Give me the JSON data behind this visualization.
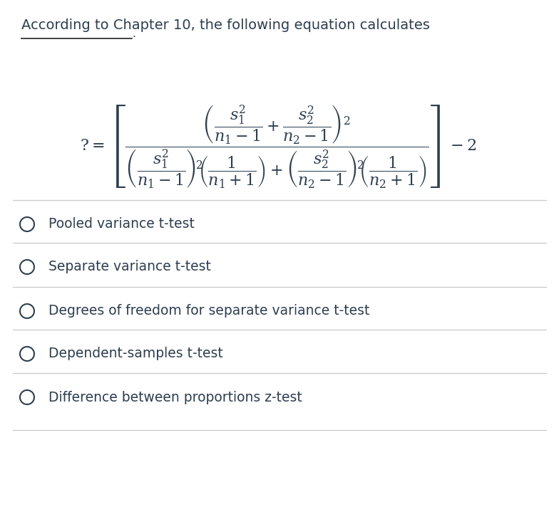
{
  "title_text": "According to Chapter 10, the following equation calculates",
  "title_color": "#2d3e50",
  "bg_color": "#ffffff",
  "choices": [
    "Pooled variance t-test",
    "Separate variance t-test",
    "Degrees of freedom for separate variance t-test",
    "Dependent-samples t-test",
    "Difference between proportions z-test"
  ],
  "choice_color": "#2d3e50",
  "choice_fontsize": 13.5,
  "divider_color": "#c8c8c8",
  "circle_color": "#2d3e50",
  "underline_color": "#333333"
}
